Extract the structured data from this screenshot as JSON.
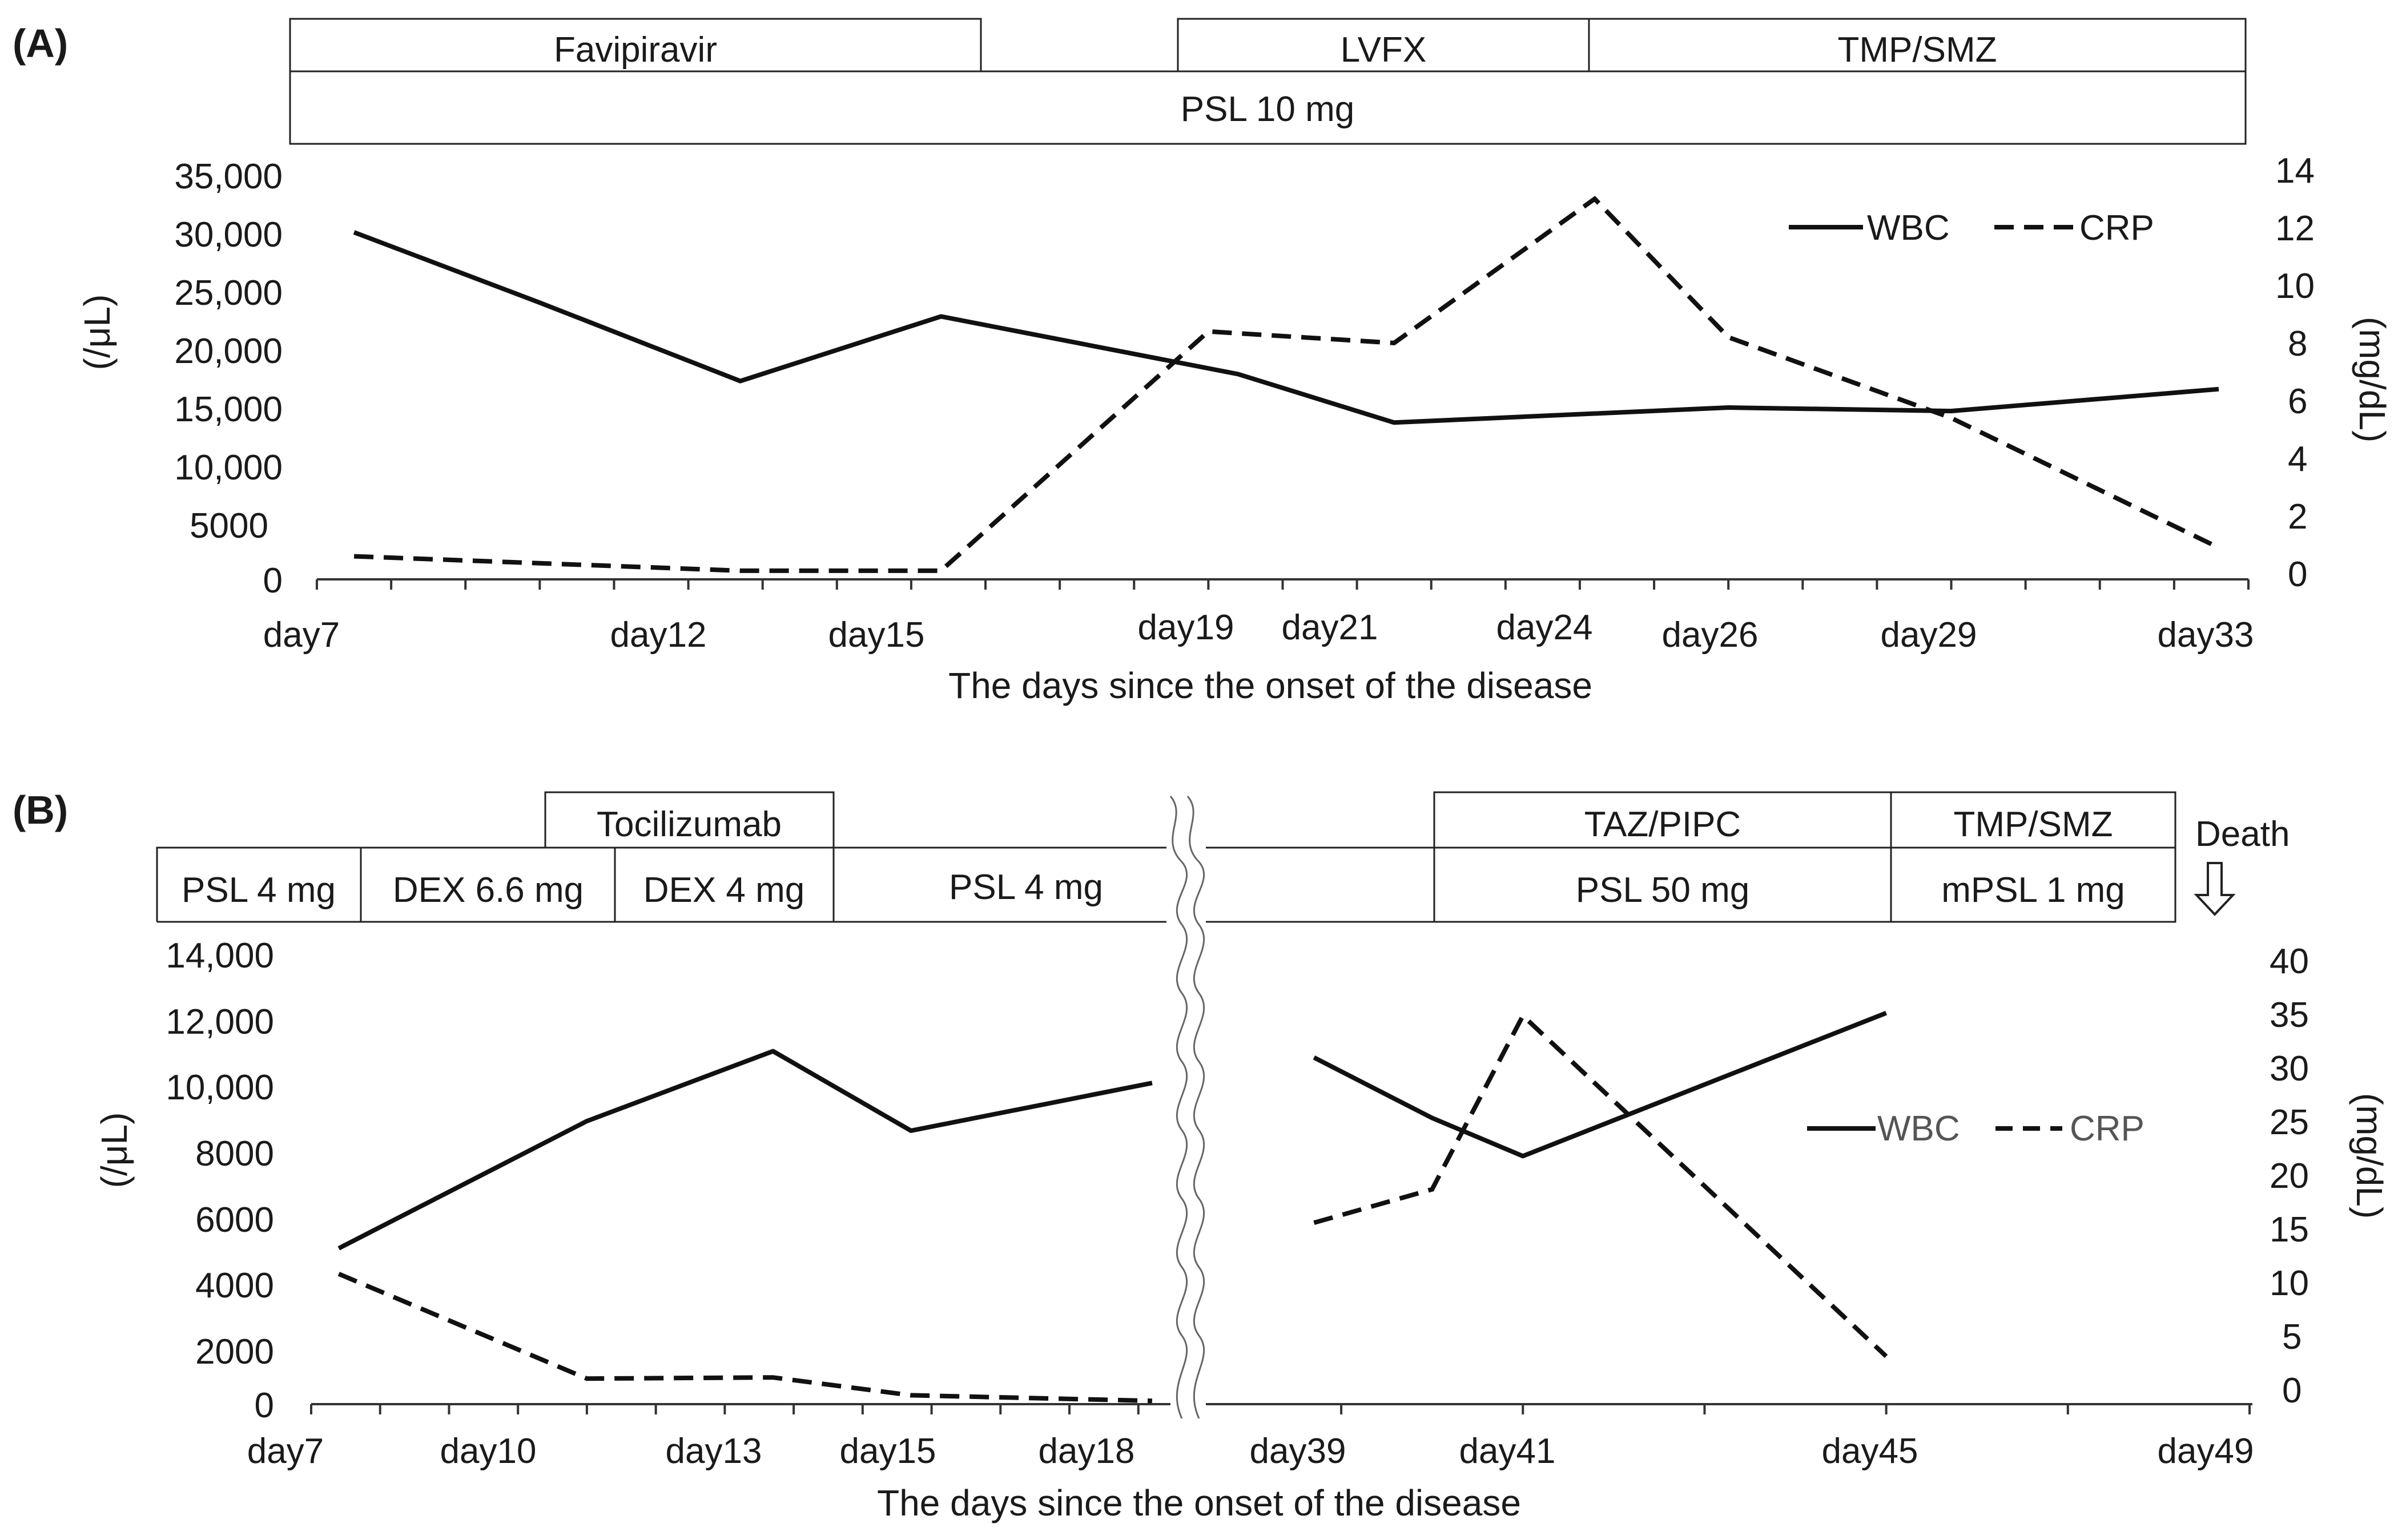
{
  "figure": {
    "panels": [
      "(A)",
      "(B)"
    ]
  },
  "chart_data": [
    {
      "type": "line",
      "panel": "(A)",
      "xlabel": "The days since the onset of the disease",
      "ylabel_left": "(/μL)",
      "ylabel_right": "(mg/dL)",
      "ylim_left": [
        0,
        35000
      ],
      "ylim_right": [
        0,
        14
      ],
      "xlim": [
        7,
        33
      ],
      "left_ticks": [
        "35,000",
        "30,000",
        "25,000",
        "20,000",
        "15,000",
        "10,000",
        "5000",
        "0"
      ],
      "right_ticks": [
        "14",
        "12",
        "10",
        "8",
        "6",
        "4",
        "2",
        "0"
      ],
      "x_ticks": [
        {
          "day": 7,
          "label": "day7"
        },
        {
          "day": 12,
          "label": "day12"
        },
        {
          "day": 15,
          "label": "day15"
        },
        {
          "day": 19,
          "label": "day19"
        },
        {
          "day": 21,
          "label": "day21"
        },
        {
          "day": 24,
          "label": "day24"
        },
        {
          "day": 26,
          "label": "day26"
        },
        {
          "day": 29,
          "label": "day29"
        },
        {
          "day": 33,
          "label": "day33"
        }
      ],
      "legend": [
        "WBC",
        "CRP"
      ],
      "series": [
        {
          "name": "WBC",
          "axis": "left",
          "style": "solid",
          "x": [
            7.5,
            10,
            12.7,
            15.4,
            19.4,
            21.5,
            26,
            29,
            32.6
          ],
          "values": [
            30100,
            24000,
            17200,
            22800,
            17800,
            13600,
            14900,
            14600,
            16500
          ]
        },
        {
          "name": "CRP",
          "axis": "right",
          "style": "dashed",
          "x": [
            7.5,
            12.7,
            15.4,
            19,
            21.5,
            24.2,
            26,
            29,
            32.6
          ],
          "values": [
            0.8,
            0.3,
            0.3,
            8.6,
            8.2,
            13.2,
            8.4,
            5.6,
            1.1
          ]
        }
      ],
      "treatments": [
        {
          "label": "Favipiravir"
        },
        {
          "label": "LVFX"
        },
        {
          "label": "TMP/SMZ"
        },
        {
          "label": "PSL 10 mg"
        }
      ]
    },
    {
      "type": "line",
      "panel": "(B)",
      "xlabel": "The days since the onset of the disease",
      "ylabel_left": "(/μL)",
      "ylabel_right": "(mg/dL)",
      "ylim_left": [
        0,
        14000
      ],
      "ylim_right": [
        0,
        40
      ],
      "axis_break": "between day18 and day39",
      "left_ticks": [
        "14,000",
        "12,000",
        "10,000",
        "8000",
        "6000",
        "4000",
        "2000",
        "0"
      ],
      "right_ticks": [
        "40",
        "35",
        "30",
        "25",
        "20",
        "15",
        "10",
        "5",
        "0"
      ],
      "x_ticks": [
        {
          "day": 7,
          "label": "day7"
        },
        {
          "day": 10,
          "label": "day10"
        },
        {
          "day": 13,
          "label": "day13"
        },
        {
          "day": 15,
          "label": "day15"
        },
        {
          "day": 18,
          "label": "day18"
        },
        {
          "day": 39,
          "label": "day39"
        },
        {
          "day": 41,
          "label": "day41"
        },
        {
          "day": 45,
          "label": "day45"
        },
        {
          "day": 49,
          "label": "day49"
        }
      ],
      "legend": [
        "WBC",
        "CRP"
      ],
      "series": [
        {
          "name": "WBC",
          "axis": "left",
          "style": "solid",
          "x": [
            7.4,
            11,
            13.7,
            15.7,
            19.2,
            38.7,
            40,
            41,
            45
          ],
          "values": [
            4900,
            8900,
            11100,
            8600,
            10100,
            10900,
            9000,
            7800,
            12300
          ]
        },
        {
          "name": "CRP",
          "axis": "right",
          "style": "dashed",
          "x": [
            7.4,
            11,
            13.7,
            15.7,
            19.2,
            38.7,
            40,
            41,
            45
          ],
          "values": [
            11.7,
            2.3,
            2.4,
            0.8,
            0.3,
            16.3,
            19.3,
            34.9,
            4.3
          ]
        }
      ],
      "treatments": [
        {
          "label": "Tocilizumab"
        },
        {
          "label": "TAZ/PIPC"
        },
        {
          "label": "TMP/SMZ"
        },
        {
          "label": "PSL 4 mg"
        },
        {
          "label": "DEX 6.6 mg"
        },
        {
          "label": "DEX 4 mg"
        },
        {
          "label": "PSL 4 mg"
        },
        {
          "label": "PSL 50 mg"
        },
        {
          "label": "mPSL 1 mg"
        }
      ],
      "death_label": "Death"
    }
  ]
}
